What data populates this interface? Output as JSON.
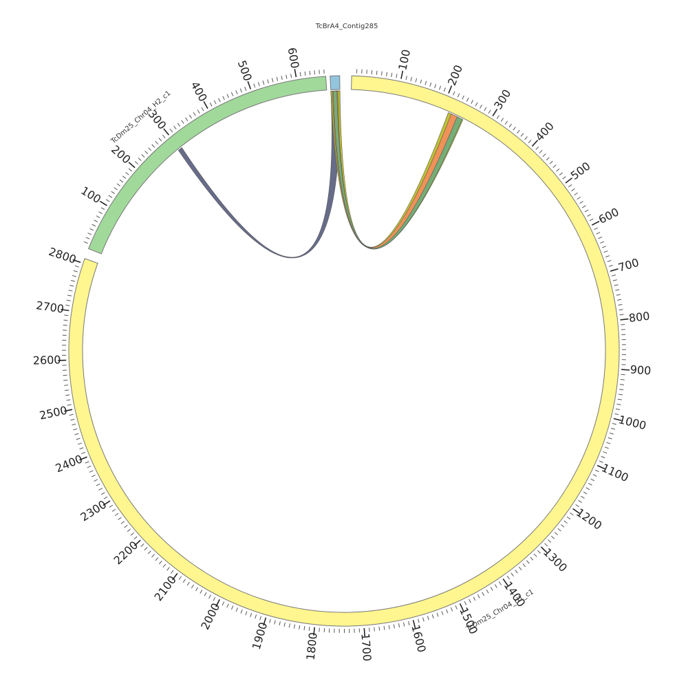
{
  "chart_data": {
    "type": "chord",
    "segments": [
      {
        "id": "contig",
        "name": "TcBrA4_Contig285",
        "length": 12,
        "start_deg": -2.9,
        "end_deg": -0.9,
        "color": "#92c5de",
        "tick_labels": []
      },
      {
        "id": "h1",
        "name": "TcDm25_Chr04_H1_c1",
        "length": 2810,
        "start_deg": 1.6,
        "end_deg": 289.6,
        "color": "#fff68f",
        "tick_step": 100,
        "tick_labels": [
          "100",
          "200",
          "300",
          "400",
          "500",
          "600",
          "700",
          "800",
          "900",
          "1000",
          "1100",
          "1200",
          "1300",
          "1400",
          "1500",
          "1600",
          "1700",
          "1800",
          "1900",
          "2000",
          "2100",
          "2200",
          "2300",
          "2400",
          "2500",
          "2600",
          "2700",
          "2800"
        ]
      },
      {
        "id": "h2",
        "name": "TcDm25_Chr04_H2_c1",
        "length": 663,
        "start_deg": 291.8,
        "end_deg": 356.2,
        "color": "#a1d99b",
        "tick_step": 100,
        "tick_labels": [
          "100",
          "200",
          "300",
          "400",
          "500",
          "600"
        ]
      }
    ],
    "links": [
      {
        "from": "contig",
        "from_range": [
          0,
          12
        ],
        "to": "h2",
        "to_range": [
          295,
          305
        ],
        "color": "#5a607f"
      },
      {
        "from": "contig",
        "from_range": [
          0,
          12
        ],
        "to": "h1",
        "to_range": [
          215,
          250
        ],
        "color": "#bcbd22"
      },
      {
        "from": "contig",
        "from_range": [
          2,
          9
        ],
        "to": "h1",
        "to_range": [
          222,
          240
        ],
        "color": "#f28e5c"
      },
      {
        "from": "contig",
        "from_range": [
          3,
          8
        ],
        "to": "h1",
        "to_range": [
          236,
          248
        ],
        "color": "#6fae7c"
      }
    ]
  }
}
